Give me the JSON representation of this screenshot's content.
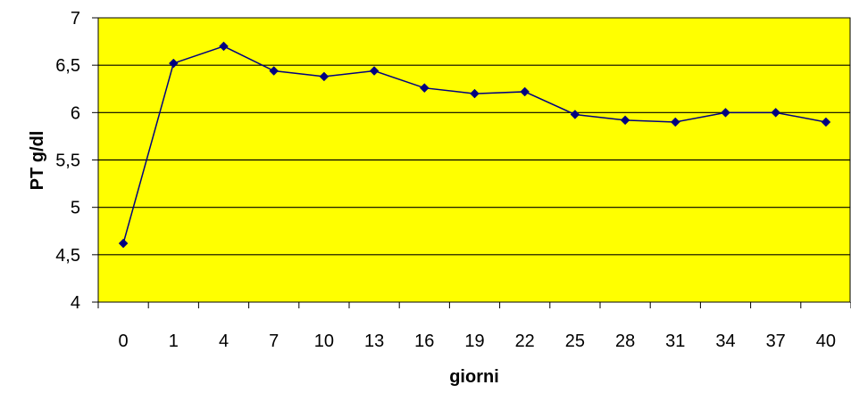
{
  "chart_data": {
    "type": "line",
    "title": "",
    "xlabel": "giorni",
    "ylabel": "PT g/dl",
    "categories": [
      "0",
      "1",
      "4",
      "7",
      "10",
      "13",
      "16",
      "19",
      "22",
      "25",
      "28",
      "31",
      "34",
      "37",
      "40"
    ],
    "series": [
      {
        "values": [
          4.62,
          6.52,
          6.7,
          6.44,
          6.38,
          6.44,
          6.26,
          6.2,
          6.22,
          5.98,
          5.92,
          5.9,
          6.0,
          6.0,
          5.9
        ]
      }
    ],
    "ylim": [
      4,
      7
    ],
    "yticks": [
      "4",
      "4,5",
      "5",
      "5,5",
      "6",
      "6,5",
      "7"
    ],
    "grid": true,
    "legend": "none",
    "colors": {
      "plot_background": "#ffff00",
      "line": "#000080",
      "marker": "#000080",
      "gridline": "#000000"
    }
  }
}
